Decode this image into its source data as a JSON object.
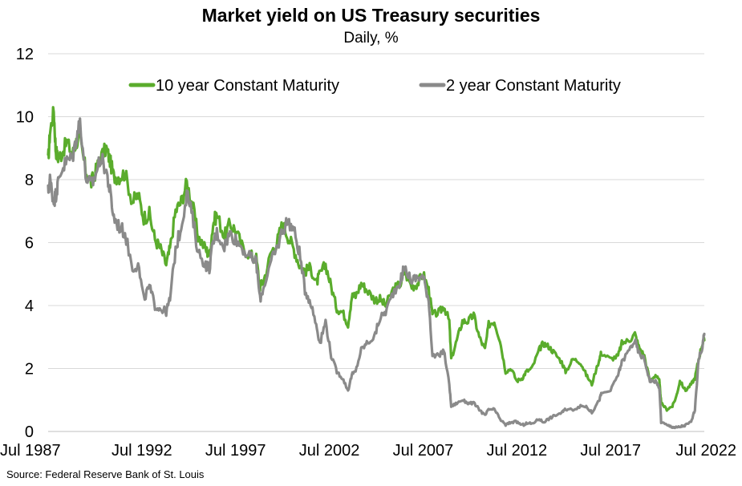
{
  "chart_data": {
    "type": "line",
    "title": "Market yield on US Treasury securities",
    "subtitle": "Daily, %",
    "source": "Source: Federal Reserve Bank of St. Louis",
    "ylim": [
      0,
      12
    ],
    "xlim": [
      1987.5,
      2022.5
    ],
    "y_ticks": [
      "0",
      "2",
      "4",
      "6",
      "8",
      "10",
      "12"
    ],
    "x_ticks": [
      "Jul 1987",
      "Jul 1992",
      "Jul 1997",
      "Jul 2002",
      "Jul 2007",
      "Jul 2012",
      "Jul 2017",
      "Jul 2022"
    ],
    "grid": true,
    "legend_position": "top-center",
    "series": [
      {
        "name": "10 year Constant Maturity",
        "color": "#5aac2c",
        "x": [
          1987.5,
          1987.6,
          1987.8,
          1987.9,
          1988.0,
          1988.2,
          1988.5,
          1988.8,
          1989.0,
          1989.2,
          1989.5,
          1989.8,
          1990.0,
          1990.3,
          1990.6,
          1990.8,
          1991.0,
          1991.3,
          1991.6,
          1992.0,
          1992.3,
          1992.6,
          1992.9,
          1993.2,
          1993.5,
          1993.8,
          1994.0,
          1994.3,
          1994.6,
          1994.9,
          1995.2,
          1995.5,
          1995.9,
          1996.1,
          1996.3,
          1996.5,
          1996.9,
          1997.2,
          1997.5,
          1997.9,
          1998.3,
          1998.6,
          1998.8,
          1999.0,
          1999.4,
          1999.7,
          2000.0,
          2000.3,
          2000.6,
          2000.9,
          2001.2,
          2001.5,
          2001.8,
          2002.0,
          2002.3,
          2002.6,
          2002.9,
          2003.2,
          2003.5,
          2003.7,
          2003.9,
          2004.2,
          2004.5,
          2004.9,
          2005.2,
          2005.5,
          2005.9,
          2006.3,
          2006.5,
          2006.9,
          2007.2,
          2007.5,
          2007.8,
          2008.0,
          2008.4,
          2008.6,
          2008.9,
          2009.0,
          2009.3,
          2009.6,
          2009.9,
          2010.2,
          2010.5,
          2010.8,
          2011.0,
          2011.3,
          2011.6,
          2011.9,
          2012.2,
          2012.5,
          2012.8,
          2013.0,
          2013.3,
          2013.7,
          2013.9,
          2014.2,
          2014.5,
          2014.9,
          2015.1,
          2015.5,
          2015.9,
          2016.2,
          2016.5,
          2016.9,
          2017.0,
          2017.5,
          2017.9,
          2018.1,
          2018.5,
          2018.8,
          2019.0,
          2019.3,
          2019.6,
          2019.9,
          2020.1,
          2020.2,
          2020.5,
          2020.8,
          2021.0,
          2021.2,
          2021.5,
          2021.8,
          2022.0,
          2022.2,
          2022.4,
          2022.5
        ],
        "values": [
          8.6,
          9.5,
          10.2,
          9.0,
          8.7,
          8.8,
          9.2,
          8.8,
          9.2,
          9.3,
          8.3,
          7.9,
          8.2,
          8.7,
          9.0,
          8.6,
          8.1,
          8.1,
          8.2,
          7.3,
          7.5,
          6.8,
          6.9,
          6.1,
          5.8,
          5.3,
          5.8,
          7.0,
          7.3,
          7.9,
          7.2,
          6.2,
          5.8,
          5.6,
          6.6,
          6.9,
          6.2,
          6.6,
          6.4,
          5.8,
          5.6,
          5.5,
          4.6,
          4.8,
          5.7,
          6.0,
          6.6,
          6.2,
          5.8,
          5.3,
          5.1,
          5.2,
          4.7,
          5.0,
          5.3,
          4.6,
          3.9,
          3.8,
          3.4,
          4.3,
          4.3,
          4.7,
          4.5,
          4.2,
          4.2,
          4.0,
          4.5,
          4.7,
          5.1,
          4.6,
          4.7,
          5.0,
          4.5,
          3.7,
          3.8,
          4.0,
          3.5,
          2.3,
          2.9,
          3.5,
          3.5,
          3.7,
          3.0,
          2.6,
          3.4,
          3.5,
          2.9,
          1.9,
          2.0,
          1.6,
          1.7,
          1.9,
          2.0,
          2.6,
          2.8,
          2.7,
          2.5,
          2.2,
          1.9,
          2.3,
          2.2,
          1.8,
          1.5,
          2.3,
          2.5,
          2.3,
          2.4,
          2.8,
          2.9,
          3.1,
          2.7,
          2.4,
          1.6,
          1.8,
          1.6,
          0.9,
          0.7,
          0.8,
          1.1,
          1.6,
          1.3,
          1.5,
          1.7,
          2.3,
          2.8,
          2.9
        ]
      },
      {
        "name": "2 year Constant Maturity",
        "color": "#8a8a8a",
        "x": [
          1987.5,
          1987.6,
          1987.8,
          1987.9,
          1988.0,
          1988.2,
          1988.5,
          1988.8,
          1989.0,
          1989.2,
          1989.5,
          1989.8,
          1990.0,
          1990.3,
          1990.6,
          1990.8,
          1991.0,
          1991.3,
          1991.6,
          1992.0,
          1992.3,
          1992.6,
          1992.9,
          1993.2,
          1993.5,
          1993.8,
          1994.0,
          1994.3,
          1994.6,
          1994.9,
          1995.2,
          1995.5,
          1995.9,
          1996.1,
          1996.3,
          1996.5,
          1996.9,
          1997.2,
          1997.5,
          1997.9,
          1998.3,
          1998.6,
          1998.8,
          1999.0,
          1999.4,
          1999.7,
          2000.0,
          2000.3,
          2000.6,
          2000.9,
          2001.2,
          2001.5,
          2001.8,
          2002.0,
          2002.3,
          2002.6,
          2002.9,
          2003.2,
          2003.5,
          2003.7,
          2003.9,
          2004.2,
          2004.5,
          2004.9,
          2005.2,
          2005.5,
          2005.9,
          2006.3,
          2006.5,
          2006.9,
          2007.2,
          2007.5,
          2007.8,
          2008.0,
          2008.4,
          2008.6,
          2008.9,
          2009.0,
          2009.3,
          2009.6,
          2009.9,
          2010.2,
          2010.5,
          2010.8,
          2011.0,
          2011.3,
          2011.6,
          2011.9,
          2012.2,
          2012.5,
          2012.8,
          2013.0,
          2013.3,
          2013.7,
          2013.9,
          2014.2,
          2014.5,
          2014.9,
          2015.1,
          2015.5,
          2015.9,
          2016.2,
          2016.5,
          2016.9,
          2017.0,
          2017.5,
          2017.9,
          2018.1,
          2018.5,
          2018.8,
          2019.0,
          2019.3,
          2019.6,
          2019.9,
          2020.1,
          2020.2,
          2020.5,
          2020.8,
          2021.0,
          2021.2,
          2021.5,
          2021.8,
          2022.0,
          2022.2,
          2022.4,
          2022.5
        ],
        "values": [
          7.6,
          8.0,
          7.3,
          7.5,
          7.8,
          8.3,
          8.6,
          8.7,
          9.3,
          9.9,
          8.1,
          7.8,
          8.1,
          8.7,
          8.3,
          7.6,
          6.8,
          6.5,
          6.3,
          5.2,
          5.3,
          4.2,
          4.6,
          4.0,
          3.9,
          3.8,
          4.2,
          5.8,
          6.5,
          7.6,
          6.8,
          5.7,
          5.3,
          5.2,
          6.0,
          6.3,
          5.9,
          6.3,
          6.1,
          5.8,
          5.5,
          5.4,
          4.2,
          4.6,
          5.4,
          5.8,
          6.4,
          6.7,
          6.4,
          5.7,
          4.5,
          4.1,
          3.4,
          2.8,
          3.5,
          2.4,
          1.9,
          1.7,
          1.3,
          1.8,
          1.9,
          2.6,
          2.8,
          3.0,
          3.6,
          3.8,
          4.4,
          4.8,
          5.2,
          4.8,
          4.9,
          4.9,
          4.2,
          2.4,
          2.4,
          2.6,
          1.5,
          0.8,
          0.9,
          1.0,
          0.9,
          0.9,
          0.7,
          0.5,
          0.7,
          0.7,
          0.4,
          0.2,
          0.3,
          0.3,
          0.2,
          0.25,
          0.25,
          0.4,
          0.3,
          0.4,
          0.5,
          0.6,
          0.7,
          0.7,
          0.8,
          0.8,
          0.6,
          1.0,
          1.2,
          1.3,
          1.8,
          2.2,
          2.6,
          2.9,
          2.5,
          2.3,
          1.6,
          1.6,
          1.4,
          0.3,
          0.2,
          0.15,
          0.12,
          0.15,
          0.2,
          0.3,
          0.7,
          2.3,
          2.7,
          3.1
        ]
      }
    ]
  }
}
